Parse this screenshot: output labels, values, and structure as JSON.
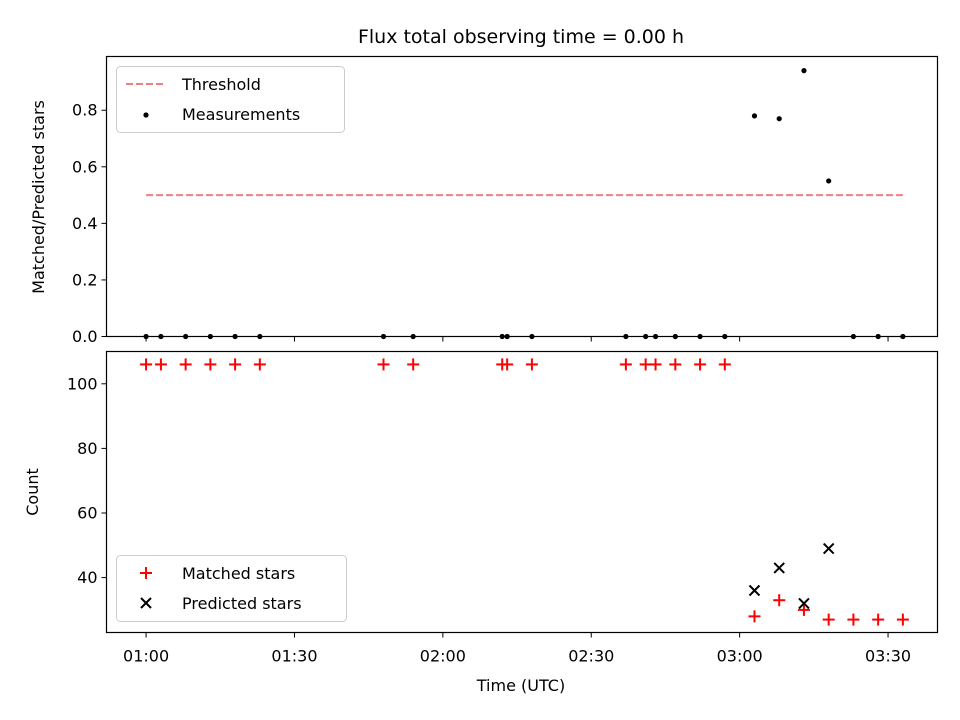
{
  "chart_data": [
    {
      "type": "scatter",
      "title": "Flux total observing time = 0.00 h",
      "xlabel": "",
      "ylabel": "Matched/Predicted stars",
      "ylim": [
        0,
        0.99
      ],
      "xlim_minutes_utc": [
        "00:52",
        "03:40"
      ],
      "yticks": [
        0.0,
        0.2,
        0.4,
        0.6,
        0.8
      ],
      "ytick_labels": [
        "0.0",
        "0.2",
        "0.4",
        "0.6",
        "0.8"
      ],
      "xticks": [
        "01:00",
        "01:30",
        "02:00",
        "02:30",
        "03:00",
        "03:30"
      ],
      "grid": false,
      "legend_position": "top-left",
      "threshold": {
        "name": "Threshold",
        "color": "#f08080",
        "style": "dashed",
        "y": 0.5,
        "x": [
          "01:00",
          "03:33"
        ]
      },
      "series": [
        {
          "name": "Measurements",
          "marker": "dot",
          "color": "#000000",
          "x": [
            "01:00",
            "01:03",
            "01:08",
            "01:13",
            "01:18",
            "01:23",
            "01:48",
            "01:54",
            "02:12",
            "02:13",
            "02:18",
            "02:37",
            "02:41",
            "02:43",
            "02:47",
            "02:52",
            "02:57",
            "03:03",
            "03:08",
            "03:13",
            "03:18",
            "03:23",
            "03:28",
            "03:33"
          ],
          "y": [
            0,
            0,
            0,
            0,
            0,
            0,
            0,
            0,
            0,
            0,
            0,
            0,
            0,
            0,
            0,
            0,
            0,
            0.78,
            0.77,
            0.94,
            0.55,
            0,
            0,
            0
          ]
        }
      ]
    },
    {
      "type": "scatter",
      "title": "",
      "xlabel": "Time (UTC)",
      "ylabel": "Count",
      "ylim": [
        23,
        110
      ],
      "xlim_minutes_utc": [
        "00:52",
        "03:40"
      ],
      "yticks": [
        40,
        60,
        80,
        100
      ],
      "ytick_labels": [
        "40",
        "60",
        "80",
        "100"
      ],
      "xticks": [
        "01:00",
        "01:30",
        "02:00",
        "02:30",
        "03:00",
        "03:30"
      ],
      "xtick_labels": [
        "01:00",
        "01:30",
        "02:00",
        "02:30",
        "03:00",
        "03:30"
      ],
      "grid": false,
      "legend_position": "bottom-left",
      "series": [
        {
          "name": "Matched stars",
          "marker": "plus",
          "color": "#ff0000",
          "x": [
            "01:00",
            "01:03",
            "01:08",
            "01:13",
            "01:18",
            "01:23",
            "01:48",
            "01:54",
            "02:12",
            "02:13",
            "02:18",
            "02:37",
            "02:41",
            "02:43",
            "02:47",
            "02:52",
            "02:57",
            "03:03",
            "03:08",
            "03:13",
            "03:18",
            "03:23",
            "03:28",
            "03:33"
          ],
          "y": [
            106,
            106,
            106,
            106,
            106,
            106,
            106,
            106,
            106,
            106,
            106,
            106,
            106,
            106,
            106,
            106,
            106,
            28,
            33,
            30,
            27,
            27,
            27,
            27
          ]
        },
        {
          "name": "Predicted stars",
          "marker": "x",
          "color": "#000000",
          "x": [
            "03:03",
            "03:08",
            "03:13",
            "03:18"
          ],
          "y": [
            36,
            43,
            32,
            49
          ]
        }
      ]
    }
  ]
}
